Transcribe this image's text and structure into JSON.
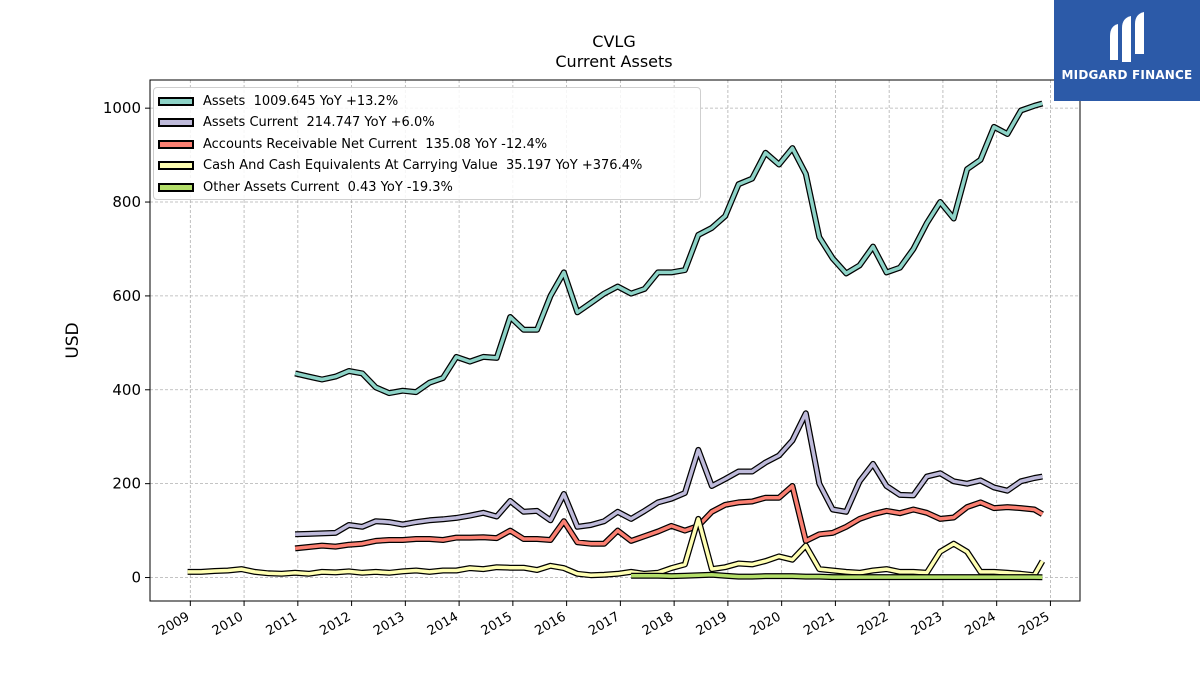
{
  "brand": {
    "name": "MIDGARD FINANCE",
    "logo_icon": "midgard-logo-icon",
    "color": "#2c5aa8"
  },
  "chart_data": {
    "type": "line",
    "title": "CVLG",
    "subtitle": "Current  Assets",
    "ylabel": "USD",
    "xlabel": "",
    "xlim": [
      2008.25,
      2025.55
    ],
    "ylim": [
      -50,
      1060
    ],
    "yticks": [
      0,
      200,
      400,
      600,
      800,
      1000
    ],
    "xticks": [
      "2009",
      "2010",
      "2011",
      "2012",
      "2013",
      "2014",
      "2015",
      "2016",
      "2017",
      "2018",
      "2019",
      "2020",
      "2021",
      "2022",
      "2023",
      "2024",
      "2025"
    ],
    "grid": true,
    "legend_position": "top-left",
    "series": [
      {
        "name": "Assets  1009.645 YoY +13.2%",
        "color": "#8dd3c7",
        "x": [
          2010.95,
          2011.2,
          2011.45,
          2011.7,
          2011.95,
          2012.2,
          2012.45,
          2012.7,
          2012.95,
          2013.2,
          2013.45,
          2013.7,
          2013.95,
          2014.2,
          2014.45,
          2014.7,
          2014.95,
          2015.2,
          2015.45,
          2015.7,
          2015.95,
          2016.2,
          2016.45,
          2016.7,
          2016.95,
          2017.2,
          2017.45,
          2017.7,
          2017.95,
          2018.2,
          2018.45,
          2018.7,
          2018.95,
          2019.2,
          2019.45,
          2019.7,
          2019.95,
          2020.2,
          2020.45,
          2020.7,
          2020.95,
          2021.2,
          2021.45,
          2021.7,
          2021.95,
          2022.2,
          2022.45,
          2022.7,
          2022.95,
          2023.2,
          2023.45,
          2023.7,
          2023.95,
          2024.2,
          2024.45,
          2024.7,
          2024.85
        ],
        "y": [
          435,
          428,
          422,
          428,
          440,
          435,
          405,
          393,
          398,
          395,
          415,
          425,
          470,
          460,
          470,
          468,
          555,
          528,
          528,
          600,
          650,
          565,
          585,
          605,
          620,
          605,
          615,
          650,
          650,
          655,
          730,
          745,
          770,
          838,
          850,
          905,
          880,
          915,
          860,
          725,
          680,
          648,
          665,
          705,
          650,
          660,
          700,
          755,
          800,
          765,
          870,
          890,
          960,
          945,
          995,
          1005,
          1010
        ]
      },
      {
        "name": "Assets Current  214.747 YoY +6.0%",
        "color": "#bebada",
        "x": [
          2010.95,
          2011.2,
          2011.45,
          2011.7,
          2011.95,
          2012.2,
          2012.45,
          2012.7,
          2012.95,
          2013.2,
          2013.45,
          2013.7,
          2013.95,
          2014.2,
          2014.45,
          2014.7,
          2014.95,
          2015.2,
          2015.45,
          2015.7,
          2015.95,
          2016.2,
          2016.45,
          2016.7,
          2016.95,
          2017.2,
          2017.45,
          2017.7,
          2017.95,
          2018.2,
          2018.45,
          2018.7,
          2018.95,
          2019.2,
          2019.45,
          2019.7,
          2019.95,
          2020.2,
          2020.45,
          2020.7,
          2020.95,
          2021.2,
          2021.45,
          2021.7,
          2021.95,
          2022.2,
          2022.45,
          2022.7,
          2022.95,
          2023.2,
          2023.45,
          2023.7,
          2023.95,
          2024.2,
          2024.45,
          2024.7,
          2024.85
        ],
        "y": [
          92,
          93,
          94,
          95,
          112,
          108,
          120,
          118,
          113,
          118,
          122,
          124,
          127,
          132,
          138,
          130,
          163,
          140,
          142,
          122,
          178,
          108,
          112,
          120,
          140,
          125,
          142,
          160,
          168,
          180,
          272,
          195,
          210,
          226,
          226,
          245,
          260,
          292,
          350,
          200,
          145,
          140,
          205,
          242,
          195,
          176,
          175,
          215,
          222,
          205,
          200,
          207,
          192,
          185,
          205,
          212,
          215
        ]
      },
      {
        "name": "Accounts Receivable Net Current  135.08 YoY -12.4%",
        "color": "#fb8072",
        "x": [
          2010.95,
          2011.2,
          2011.45,
          2011.7,
          2011.95,
          2012.2,
          2012.45,
          2012.7,
          2012.95,
          2013.2,
          2013.45,
          2013.7,
          2013.95,
          2014.2,
          2014.45,
          2014.7,
          2014.95,
          2015.2,
          2015.45,
          2015.7,
          2015.95,
          2016.2,
          2016.45,
          2016.7,
          2016.95,
          2017.2,
          2017.45,
          2017.7,
          2017.95,
          2018.2,
          2018.45,
          2018.7,
          2018.95,
          2019.2,
          2019.45,
          2019.7,
          2019.95,
          2020.2,
          2020.45,
          2020.7,
          2020.95,
          2021.2,
          2021.45,
          2021.7,
          2021.95,
          2022.2,
          2022.45,
          2022.7,
          2022.95,
          2023.2,
          2023.45,
          2023.7,
          2023.95,
          2024.2,
          2024.45,
          2024.7,
          2024.85
        ],
        "y": [
          62,
          65,
          68,
          66,
          70,
          72,
          78,
          80,
          80,
          82,
          82,
          80,
          85,
          85,
          86,
          84,
          100,
          82,
          82,
          80,
          120,
          75,
          72,
          72,
          100,
          78,
          88,
          98,
          110,
          100,
          110,
          140,
          155,
          160,
          162,
          170,
          170,
          195,
          78,
          92,
          95,
          108,
          125,
          135,
          142,
          137,
          145,
          138,
          125,
          128,
          150,
          160,
          148,
          150,
          148,
          145,
          135
        ]
      },
      {
        "name": "Cash And Cash Equivalents At Carrying Value  35.197 YoY +376.4%",
        "color": "#ffffb3",
        "x": [
          2008.95,
          2009.2,
          2009.45,
          2009.7,
          2009.95,
          2010.2,
          2010.45,
          2010.7,
          2010.95,
          2011.2,
          2011.45,
          2011.7,
          2011.95,
          2012.2,
          2012.45,
          2012.7,
          2012.95,
          2013.2,
          2013.45,
          2013.7,
          2013.95,
          2014.2,
          2014.45,
          2014.7,
          2014.95,
          2015.2,
          2015.45,
          2015.7,
          2015.95,
          2016.2,
          2016.45,
          2016.7,
          2016.95,
          2017.2,
          2017.45,
          2017.7,
          2017.95,
          2018.2,
          2018.45,
          2018.7,
          2018.95,
          2019.2,
          2019.45,
          2019.7,
          2019.95,
          2020.2,
          2020.45,
          2020.7,
          2020.95,
          2021.2,
          2021.45,
          2021.7,
          2021.95,
          2022.2,
          2022.45,
          2022.7,
          2022.95,
          2023.2,
          2023.45,
          2023.7,
          2023.95,
          2024.2,
          2024.45,
          2024.7,
          2024.85
        ],
        "y": [
          12,
          12,
          14,
          15,
          18,
          12,
          9,
          8,
          10,
          8,
          12,
          11,
          13,
          10,
          12,
          10,
          13,
          15,
          12,
          15,
          15,
          20,
          18,
          22,
          21,
          21,
          16,
          25,
          20,
          8,
          5,
          6,
          8,
          12,
          8,
          10,
          20,
          28,
          125,
          18,
          22,
          30,
          28,
          35,
          45,
          38,
          68,
          18,
          15,
          12,
          10,
          15,
          18,
          12,
          12,
          10,
          55,
          72,
          55,
          12,
          12,
          10,
          8,
          5,
          35
        ]
      },
      {
        "name": "Other Assets Current  0.43 YoY -19.3%",
        "color": "#b3de69",
        "x": [
          2017.2,
          2017.45,
          2017.7,
          2017.95,
          2018.2,
          2018.45,
          2018.7,
          2018.95,
          2019.2,
          2019.45,
          2019.7,
          2019.95,
          2020.2,
          2020.45,
          2020.7,
          2020.95,
          2021.2,
          2021.45,
          2021.7,
          2021.95,
          2022.2,
          2022.45,
          2022.7,
          2022.95,
          2023.2,
          2023.45,
          2023.7,
          2023.95,
          2024.2,
          2024.45,
          2024.7,
          2024.85
        ],
        "y": [
          4,
          4,
          4,
          3,
          4,
          5,
          6,
          4,
          2,
          2,
          3,
          3,
          3,
          2,
          2,
          1,
          1,
          1,
          1,
          1,
          1,
          1,
          1,
          1,
          1,
          1,
          1,
          1,
          1,
          1,
          1,
          0.43
        ]
      }
    ]
  }
}
